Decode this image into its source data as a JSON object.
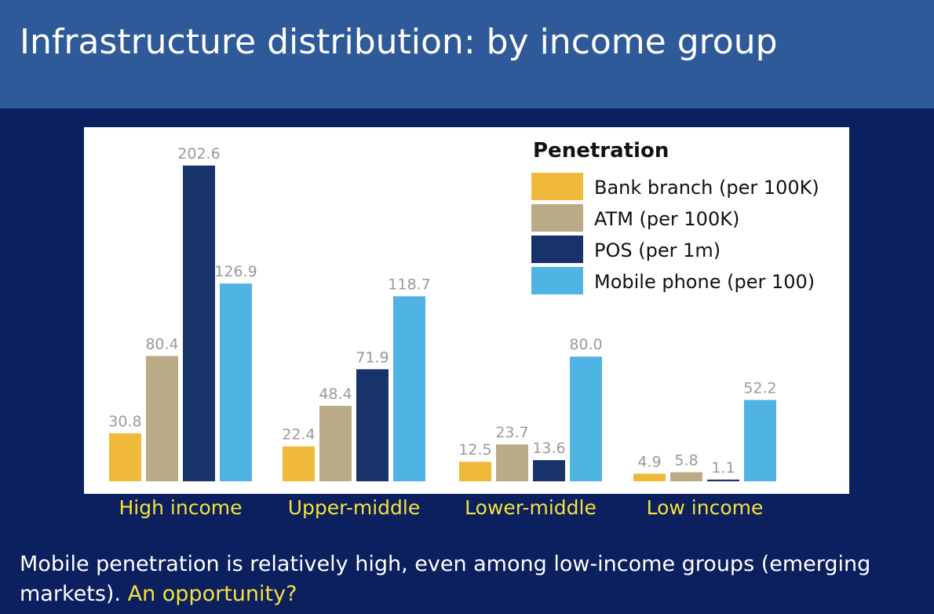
{
  "slide": {
    "title": "Infrastructure distribution: by income group",
    "caption_main": "Mobile penetration is relatively high, even among low-income groups (emerging markets).",
    "caption_highlight": "An opportunity?"
  },
  "chart_data": {
    "type": "bar",
    "title": "",
    "xlabel": "",
    "ylabel": "",
    "ylim": [
      0,
      210
    ],
    "grid": false,
    "legend_title": "Penetration",
    "legend_position": "top-right",
    "categories": [
      "High income",
      "Upper-middle",
      "Lower-middle",
      "Low income"
    ],
    "series": [
      {
        "name": "Bank branch (per 100K)",
        "color": "#efba3a",
        "values": [
          30.8,
          22.4,
          12.5,
          4.9
        ]
      },
      {
        "name": "ATM (per 100K)",
        "color": "#b8ab85",
        "values": [
          80.4,
          48.4,
          23.7,
          5.8
        ]
      },
      {
        "name": "POS (per 1m)",
        "color": "#17336a",
        "values": [
          202.6,
          71.9,
          13.6,
          1.1
        ]
      },
      {
        "name": "Mobile phone (per 100)",
        "color": "#4fb3e3",
        "values": [
          126.9,
          118.7,
          80.0,
          52.2
        ]
      }
    ],
    "data_label_color": "#9a9a9a",
    "category_label_color": "#f5e23a"
  }
}
